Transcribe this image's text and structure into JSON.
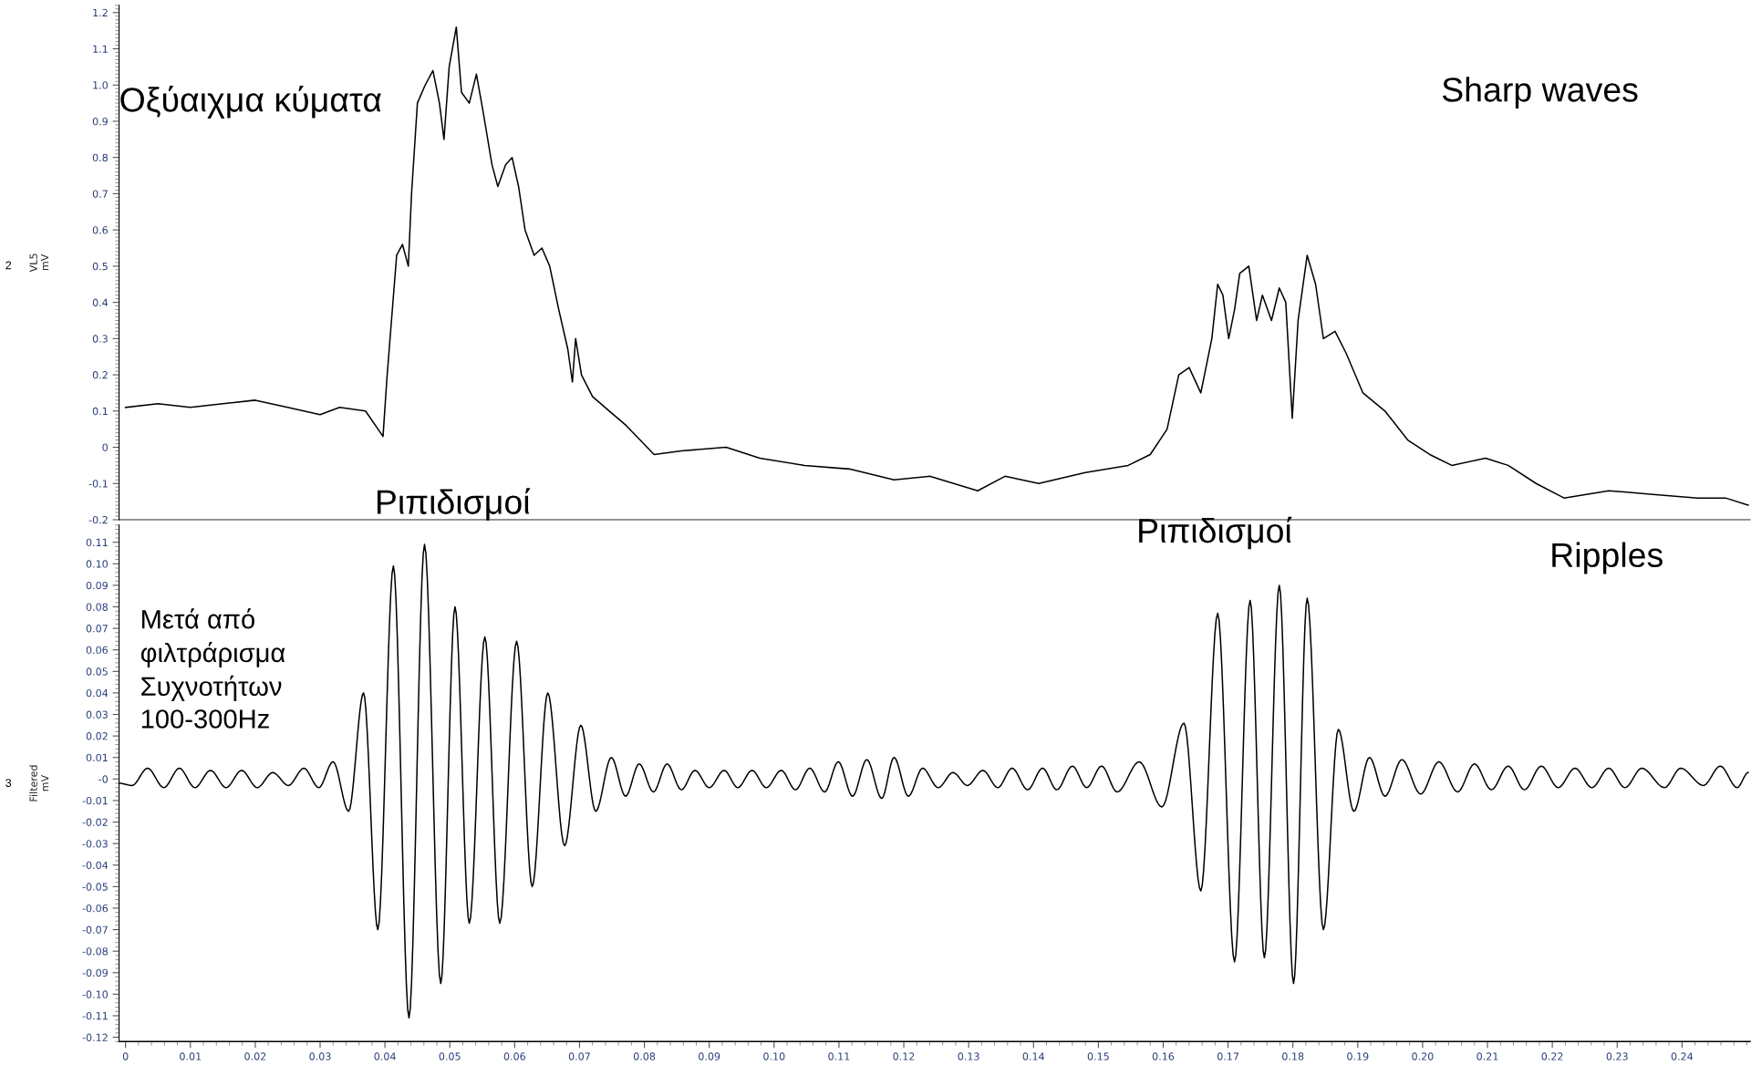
{
  "chart_data": [
    {
      "type": "line",
      "ylabel": "VL5\nmV",
      "annotations": [
        "2",
        "Οξύαιχμα κύματα",
        "Sharp waves",
        "Ριπιδισμοί"
      ],
      "xlim": [
        -0.001,
        0.2505
      ],
      "ylim": [
        -0.2,
        1.22
      ],
      "tick_labels": "y",
      "grid": false,
      "legend": false,
      "marker": "none",
      "line_style": "solid",
      "yticks": [
        {
          "value": -0.2,
          "label": "-0.2"
        },
        {
          "value": -0.1,
          "label": "-0.1"
        },
        {
          "value": 0,
          "label": "0"
        },
        {
          "value": 0.1,
          "label": "0.1"
        },
        {
          "value": 0.2,
          "label": "0.2"
        },
        {
          "value": 0.3,
          "label": "0.3"
        },
        {
          "value": 0.4,
          "label": "0.4"
        },
        {
          "value": 0.5,
          "label": "0.5"
        },
        {
          "value": 0.6,
          "label": "0.6"
        },
        {
          "value": 0.7,
          "label": "0.7"
        },
        {
          "value": 0.8,
          "label": "0.8"
        },
        {
          "value": 0.9,
          "label": "0.9"
        },
        {
          "value": 1.0,
          "label": "1.0"
        },
        {
          "value": 1.1,
          "label": "1.1"
        },
        {
          "value": 1.2,
          "label": "1.2"
        }
      ],
      "series": [
        {
          "color": "#000000",
          "x": [
            0,
            0.005,
            0.01,
            0.015,
            0.02,
            0.025,
            0.03,
            0.033,
            0.037,
            0.0397,
            0.0403,
            0.0418,
            0.0427,
            0.0436,
            0.0441,
            0.045,
            0.0462,
            0.0474,
            0.0484,
            0.0491,
            0.0499,
            0.051,
            0.0518,
            0.053,
            0.0541,
            0.0551,
            0.0565,
            0.0574,
            0.0586,
            0.0596,
            0.0606,
            0.0616,
            0.063,
            0.0642,
            0.0654,
            0.0668,
            0.0682,
            0.0689,
            0.0694,
            0.0703,
            0.072,
            0.0746,
            0.0772,
            0.0815,
            0.0857,
            0.0926,
            0.0978,
            0.1047,
            0.1116,
            0.1185,
            0.124,
            0.1314,
            0.1356,
            0.1408,
            0.148,
            0.1546,
            0.158,
            0.1606,
            0.1624,
            0.164,
            0.1658,
            0.1675,
            0.1684,
            0.1692,
            0.1701,
            0.171,
            0.1718,
            0.1732,
            0.1744,
            0.1753,
            0.1767,
            0.1779,
            0.1789,
            0.1799,
            0.1808,
            0.1822,
            0.1835,
            0.1847,
            0.1865,
            0.1882,
            0.1908,
            0.1942,
            0.1977,
            0.2011,
            0.2045,
            0.2097,
            0.2132,
            0.2175,
            0.2218,
            0.2287,
            0.2355,
            0.2424,
            0.2467,
            0.2502
          ],
          "values": [
            0.11,
            0.12,
            0.11,
            0.12,
            0.13,
            0.11,
            0.09,
            0.11,
            0.1,
            0.03,
            0.19,
            0.53,
            0.56,
            0.5,
            0.7,
            0.95,
            1.0,
            1.04,
            0.95,
            0.85,
            1.05,
            1.16,
            0.98,
            0.95,
            1.03,
            0.93,
            0.78,
            0.72,
            0.78,
            0.8,
            0.72,
            0.6,
            0.53,
            0.55,
            0.5,
            0.38,
            0.27,
            0.18,
            0.3,
            0.2,
            0.14,
            0.1,
            0.06,
            -0.02,
            -0.01,
            0.0,
            -0.03,
            -0.05,
            -0.06,
            -0.09,
            -0.08,
            -0.12,
            -0.08,
            -0.1,
            -0.07,
            -0.05,
            -0.02,
            0.05,
            0.2,
            0.22,
            0.15,
            0.3,
            0.45,
            0.42,
            0.3,
            0.38,
            0.48,
            0.5,
            0.35,
            0.42,
            0.35,
            0.44,
            0.4,
            0.08,
            0.35,
            0.53,
            0.45,
            0.3,
            0.32,
            0.26,
            0.15,
            0.1,
            0.02,
            -0.02,
            -0.05,
            -0.03,
            -0.05,
            -0.1,
            -0.14,
            -0.12,
            -0.13,
            -0.14,
            -0.14,
            -0.16
          ]
        }
      ]
    },
    {
      "type": "line",
      "ylabel": "Filtered\nmV",
      "annotations": [
        "3",
        "Ριπιδισμοί",
        "Ripples",
        "Μετά από\nφιλτράρισμα\nΣυχνοτήτων\n100-300Hz"
      ],
      "xlim": [
        -0.001,
        0.2505
      ],
      "ylim": [
        -0.122,
        0.118
      ],
      "grid": false,
      "legend": false,
      "marker": "none",
      "line_style": "solid",
      "xticks": [
        {
          "value": 0,
          "label": "0"
        },
        {
          "value": 0.01,
          "label": "0.01"
        },
        {
          "value": 0.02,
          "label": "0.02"
        },
        {
          "value": 0.03,
          "label": "0.03"
        },
        {
          "value": 0.04,
          "label": "0.04"
        },
        {
          "value": 0.05,
          "label": "0.05"
        },
        {
          "value": 0.06,
          "label": "0.06"
        },
        {
          "value": 0.07,
          "label": "0.07"
        },
        {
          "value": 0.08,
          "label": "0.08"
        },
        {
          "value": 0.09,
          "label": "0.09"
        },
        {
          "value": 0.1,
          "label": "0.10"
        },
        {
          "value": 0.11,
          "label": "0.11"
        },
        {
          "value": 0.12,
          "label": "0.12"
        },
        {
          "value": 0.13,
          "label": "0.13"
        },
        {
          "value": 0.14,
          "label": "0.14"
        },
        {
          "value": 0.15,
          "label": "0.15"
        },
        {
          "value": 0.16,
          "label": "0.16"
        },
        {
          "value": 0.17,
          "label": "0.17"
        },
        {
          "value": 0.18,
          "label": "0.18"
        },
        {
          "value": 0.19,
          "label": "0.19"
        },
        {
          "value": 0.2,
          "label": "0.20"
        },
        {
          "value": 0.21,
          "label": "0.21"
        },
        {
          "value": 0.22,
          "label": "0.22"
        },
        {
          "value": 0.23,
          "label": "0.23"
        },
        {
          "value": 0.24,
          "label": "0.24"
        }
      ],
      "yticks": [
        {
          "value": -0.12,
          "label": "-0.12"
        },
        {
          "value": -0.11,
          "label": "-0.11"
        },
        {
          "value": -0.1,
          "label": "-0.10"
        },
        {
          "value": -0.09,
          "label": "-0.09"
        },
        {
          "value": -0.08,
          "label": "-0.08"
        },
        {
          "value": -0.07,
          "label": "-0.07"
        },
        {
          "value": -0.06,
          "label": "-0.06"
        },
        {
          "value": -0.05,
          "label": "-0.05"
        },
        {
          "value": -0.04,
          "label": "-0.04"
        },
        {
          "value": -0.03,
          "label": "-0.03"
        },
        {
          "value": -0.02,
          "label": "-0.02"
        },
        {
          "value": -0.01,
          "label": "-0.01"
        },
        {
          "value": 0,
          "label": "-0"
        },
        {
          "value": 0.01,
          "label": "0.01"
        },
        {
          "value": 0.02,
          "label": "0.02"
        },
        {
          "value": 0.03,
          "label": "0.03"
        },
        {
          "value": 0.04,
          "label": "0.04"
        },
        {
          "value": 0.05,
          "label": "0.05"
        },
        {
          "value": 0.06,
          "label": "0.06"
        },
        {
          "value": 0.07,
          "label": "0.07"
        },
        {
          "value": 0.08,
          "label": "0.08"
        },
        {
          "value": 0.09,
          "label": "0.09"
        },
        {
          "value": 0.1,
          "label": "0.10"
        },
        {
          "value": 0.11,
          "label": "0.11"
        }
      ],
      "series": [
        {
          "color": "#000000",
          "x": [
            -0.0009,
            0.001,
            0.0034,
            0.0059,
            0.0083,
            0.0107,
            0.0131,
            0.0155,
            0.0179,
            0.0203,
            0.0227,
            0.0251,
            0.0275,
            0.0298,
            0.032,
            0.0344,
            0.0367,
            0.0389,
            0.0413,
            0.0437,
            0.0461,
            0.0486,
            0.0508,
            0.053,
            0.0554,
            0.0577,
            0.0603,
            0.0627,
            0.0651,
            0.0677,
            0.0702,
            0.0725,
            0.0749,
            0.0771,
            0.0792,
            0.0814,
            0.0835,
            0.0857,
            0.0878,
            0.09,
            0.0923,
            0.0944,
            0.0966,
            0.0988,
            0.1011,
            0.1033,
            0.1055,
            0.1078,
            0.1099,
            0.1121,
            0.1143,
            0.1166,
            0.1185,
            0.1207,
            0.1229,
            0.1253,
            0.1276,
            0.1298,
            0.1322,
            0.1345,
            0.1367,
            0.1391,
            0.1414,
            0.1436,
            0.146,
            0.1482,
            0.1505,
            0.1529,
            0.1563,
            0.1598,
            0.1632,
            0.1658,
            0.1684,
            0.171,
            0.1734,
            0.1756,
            0.1779,
            0.1801,
            0.1822,
            0.1847,
            0.187,
            0.1894,
            0.1918,
            0.1942,
            0.1968,
            0.1997,
            0.2025,
            0.2054,
            0.208,
            0.2106,
            0.2132,
            0.2157,
            0.2183,
            0.2209,
            0.2235,
            0.2261,
            0.2287,
            0.2312,
            0.2338,
            0.2373,
            0.2398,
            0.2433,
            0.2459,
            0.2485,
            0.2502
          ],
          "values": [
            -0.002,
            -0.003,
            0.005,
            -0.004,
            0.005,
            -0.004,
            0.004,
            -0.004,
            0.004,
            -0.004,
            0.003,
            -0.003,
            0.005,
            -0.004,
            0.008,
            -0.015,
            0.04,
            -0.07,
            0.099,
            -0.111,
            0.109,
            -0.095,
            0.08,
            -0.067,
            0.066,
            -0.067,
            0.064,
            -0.05,
            0.04,
            -0.031,
            0.025,
            -0.015,
            0.01,
            -0.008,
            0.007,
            -0.006,
            0.007,
            -0.005,
            0.004,
            -0.004,
            0.004,
            -0.004,
            0.004,
            -0.004,
            0.004,
            -0.005,
            0.005,
            -0.006,
            0.008,
            -0.008,
            0.009,
            -0.009,
            0.01,
            -0.008,
            0.005,
            -0.004,
            0.003,
            -0.003,
            0.004,
            -0.004,
            0.005,
            -0.005,
            0.005,
            -0.005,
            0.006,
            -0.004,
            0.006,
            -0.006,
            0.008,
            -0.013,
            0.026,
            -0.052,
            0.077,
            -0.085,
            0.083,
            -0.083,
            0.09,
            -0.095,
            0.084,
            -0.07,
            0.023,
            -0.015,
            0.01,
            -0.008,
            0.009,
            -0.007,
            0.008,
            -0.006,
            0.007,
            -0.005,
            0.006,
            -0.005,
            0.006,
            -0.004,
            0.005,
            -0.004,
            0.005,
            -0.004,
            0.005,
            -0.004,
            0.005,
            -0.003,
            0.006,
            -0.004,
            0.003
          ]
        }
      ]
    }
  ]
}
